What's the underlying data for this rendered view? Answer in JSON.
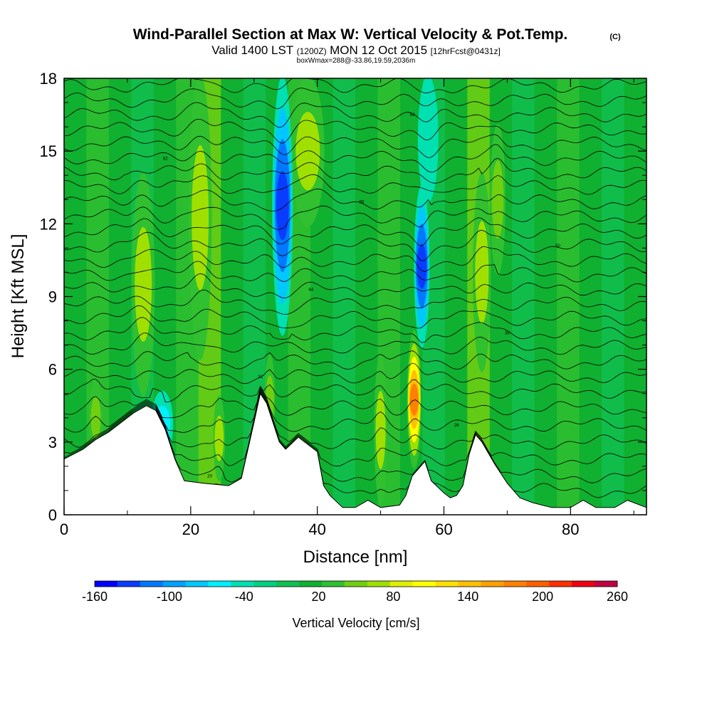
{
  "chart_data": {
    "type": "heatmap",
    "title": "Wind-Parallel Section at Max W: Vertical Velocity & Pot.Temp.",
    "title_mark": "(C)",
    "subtitle": {
      "valid": "Valid 1400 LST",
      "utc": "(1200Z)",
      "date": "MON 12 Oct 2015",
      "forecast": "[12hrFcst@0431z]"
    },
    "box_info": "boxWmax=288@-33.86,19.59,2036m",
    "xlabel": "Distance [nm]",
    "ylabel": "Height [Kft MSL]",
    "xlim": [
      0,
      92
    ],
    "ylim": [
      0,
      18
    ],
    "x_ticks": [
      0,
      20,
      40,
      60,
      80
    ],
    "y_ticks": [
      0,
      3,
      6,
      9,
      12,
      15,
      18
    ],
    "colorbar": {
      "label": "Vertical Velocity [cm/s]",
      "labels": [
        "-160",
        "-100",
        "-40",
        "20",
        "80",
        "140",
        "200",
        "260"
      ],
      "bounds": [
        -160,
        260
      ],
      "step": 20,
      "colors": [
        "#0000ff",
        "#0a3cff",
        "#0078ff",
        "#00a0ff",
        "#00c8ff",
        "#00f0ff",
        "#00e0b0",
        "#00d080",
        "#10c050",
        "#10b030",
        "#30c030",
        "#70d010",
        "#a0e000",
        "#e0f000",
        "#ffff00",
        "#ffe000",
        "#ffc000",
        "#ffa000",
        "#ff8000",
        "#ff6000",
        "#ff3000",
        "#f00010",
        "#c00040"
      ]
    },
    "terrain": [
      [
        0,
        2.3
      ],
      [
        3,
        2.7
      ],
      [
        5,
        3.1
      ],
      [
        7,
        3.4
      ],
      [
        9,
        3.8
      ],
      [
        11,
        4.2
      ],
      [
        13,
        4.5
      ],
      [
        14.5,
        4.3
      ],
      [
        16,
        3.5
      ],
      [
        17.5,
        2.3
      ],
      [
        19,
        1.4
      ],
      [
        22,
        1.3
      ],
      [
        26,
        1.2
      ],
      [
        28,
        1.5
      ],
      [
        30,
        3.8
      ],
      [
        31,
        5.0
      ],
      [
        32,
        4.6
      ],
      [
        34,
        3.0
      ],
      [
        35,
        2.7
      ],
      [
        37,
        3.2
      ],
      [
        38,
        3.0
      ],
      [
        40,
        2.6
      ],
      [
        41,
        1.2
      ],
      [
        42,
        0.8
      ],
      [
        44,
        0.3
      ],
      [
        46,
        0.3
      ],
      [
        48,
        0.6
      ],
      [
        50,
        0.3
      ],
      [
        53,
        0.4
      ],
      [
        54,
        0.8
      ],
      [
        55,
        1.6
      ],
      [
        56,
        1.9
      ],
      [
        57,
        2.2
      ],
      [
        58,
        1.4
      ],
      [
        60,
        0.9
      ],
      [
        61,
        0.7
      ],
      [
        62,
        0.8
      ],
      [
        63,
        1.2
      ],
      [
        64,
        2.5
      ],
      [
        65,
        3.3
      ],
      [
        66,
        3.0
      ],
      [
        68,
        2.1
      ],
      [
        70,
        1.3
      ],
      [
        72,
        0.7
      ],
      [
        74,
        0.5
      ],
      [
        77,
        0.3
      ],
      [
        80,
        0.3
      ],
      [
        82,
        0.6
      ],
      [
        84,
        0.3
      ],
      [
        87,
        0.3
      ],
      [
        89,
        0.6
      ],
      [
        92,
        0.3
      ]
    ],
    "updraft_bands": [
      {
        "x": 12.5,
        "w": 1.6,
        "z0": 5.0,
        "z1": 14.0,
        "v": 80
      },
      {
        "x": 21.5,
        "w": 1.6,
        "z0": 6.5,
        "z1": 18.0,
        "v": 80
      },
      {
        "x": 24.5,
        "w": 0.7,
        "z0": 1.5,
        "z1": 4.8,
        "v": 80
      },
      {
        "x": 38.5,
        "w": 2.4,
        "z0": 12.0,
        "z1": 18.0,
        "v": 80
      },
      {
        "x": 50.0,
        "w": 0.8,
        "z0": 0.5,
        "z1": 6.5,
        "v": 80
      },
      {
        "x": 55.3,
        "w": 0.9,
        "z0": 2.0,
        "z1": 7.5,
        "v": 200
      },
      {
        "x": 66.0,
        "w": 1.2,
        "z0": 6.0,
        "z1": 14.0,
        "v": 80
      },
      {
        "x": 68.5,
        "w": 1.0,
        "z0": 10.0,
        "z1": 16.0,
        "v": 60
      },
      {
        "x": 5.0,
        "w": 0.8,
        "z0": 2.5,
        "z1": 5.5,
        "v": 60
      },
      {
        "x": 32.5,
        "w": 0.6,
        "z0": 3.0,
        "z1": 6.5,
        "v": 60
      }
    ],
    "downdraft_bands": [
      {
        "x": 34.5,
        "w": 1.4,
        "z0": 7.5,
        "z1": 18.0,
        "v": -140
      },
      {
        "x": 56.5,
        "w": 1.0,
        "z0": 7.0,
        "z1": 13.5,
        "v": -140
      },
      {
        "x": 15.5,
        "w": 1.5,
        "z0": 2.5,
        "z1": 5.0,
        "v": -60
      },
      {
        "x": 57.5,
        "w": 1.4,
        "z0": 13.0,
        "z1": 18.0,
        "v": -40
      }
    ],
    "isentrope_levels": [
      1.0,
      1.6,
      2.3,
      3.0,
      3.7,
      4.4,
      5.1,
      5.7,
      6.3,
      6.9,
      7.5,
      8.1,
      8.7,
      9.3,
      9.9,
      10.5,
      11.1,
      11.7,
      12.3,
      12.9,
      13.5,
      14.1,
      14.7,
      15.3,
      15.9,
      16.5,
      17.1,
      17.7
    ],
    "isentrope_labels": [
      "18",
      "20",
      "22",
      "24",
      "26",
      "28",
      "30",
      "32",
      "34",
      "36",
      "38",
      "40",
      "42",
      "44",
      "46",
      "48",
      "50",
      "52",
      "54",
      "56",
      "58",
      "60",
      "62",
      "64",
      "66",
      "68",
      "70",
      "72"
    ]
  }
}
